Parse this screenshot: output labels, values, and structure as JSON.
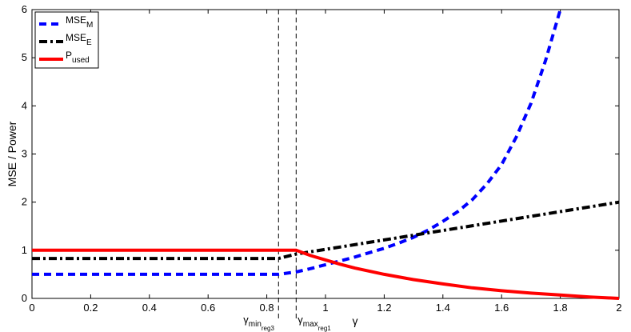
{
  "chart_data": {
    "type": "line",
    "xlim": [
      0,
      2
    ],
    "ylim": [
      0,
      6
    ],
    "xticks": [
      "0",
      "0.2",
      "0.4",
      "0.6",
      "0.8",
      "1",
      "1.2",
      "1.4",
      "1.6",
      "1.8",
      "2"
    ],
    "yticks": [
      "0",
      "1",
      "2",
      "3",
      "4",
      "5",
      "6"
    ],
    "ylabel": "MSE / Power",
    "xlabel": "γ",
    "grid": false,
    "legend_position": "top-left",
    "series": [
      {
        "key": "mse_m",
        "name": "MSE",
        "name_sub": "M",
        "color": "#0000ff",
        "style": "dashed",
        "x": [
          0,
          0.84,
          0.9,
          0.95,
          1.0,
          1.05,
          1.1,
          1.15,
          1.2,
          1.25,
          1.3,
          1.35,
          1.4,
          1.45,
          1.5,
          1.55,
          1.6,
          1.65,
          1.7,
          1.75,
          1.8
        ],
        "y": [
          0.5,
          0.5,
          0.55,
          0.62,
          0.7,
          0.78,
          0.86,
          0.95,
          1.04,
          1.15,
          1.27,
          1.42,
          1.6,
          1.8,
          2.05,
          2.38,
          2.78,
          3.35,
          4.05,
          4.95,
          6.0
        ]
      },
      {
        "key": "mse_e",
        "name": "MSE",
        "name_sub": "E",
        "color": "#000000",
        "style": "dashdot",
        "x": [
          0,
          0.84,
          0.9,
          2.0
        ],
        "y": [
          0.83,
          0.83,
          0.92,
          2.0
        ]
      },
      {
        "key": "p_used",
        "name": "P",
        "name_sub": "used",
        "color": "#ff0000",
        "style": "solid",
        "x": [
          0,
          0.9,
          0.95,
          1.0,
          1.05,
          1.1,
          1.2,
          1.3,
          1.4,
          1.5,
          1.6,
          1.7,
          1.8,
          1.9,
          2.0
        ],
        "y": [
          1.0,
          1.0,
          0.89,
          0.8,
          0.71,
          0.63,
          0.5,
          0.39,
          0.3,
          0.22,
          0.16,
          0.11,
          0.07,
          0.03,
          0.0
        ]
      }
    ],
    "vlines": [
      {
        "x": 0.84,
        "label": "γ",
        "sub1": "min",
        "sub2": "reg3"
      },
      {
        "x": 0.9,
        "label": "γ",
        "sub1": "max",
        "sub2": "reg1"
      }
    ]
  }
}
